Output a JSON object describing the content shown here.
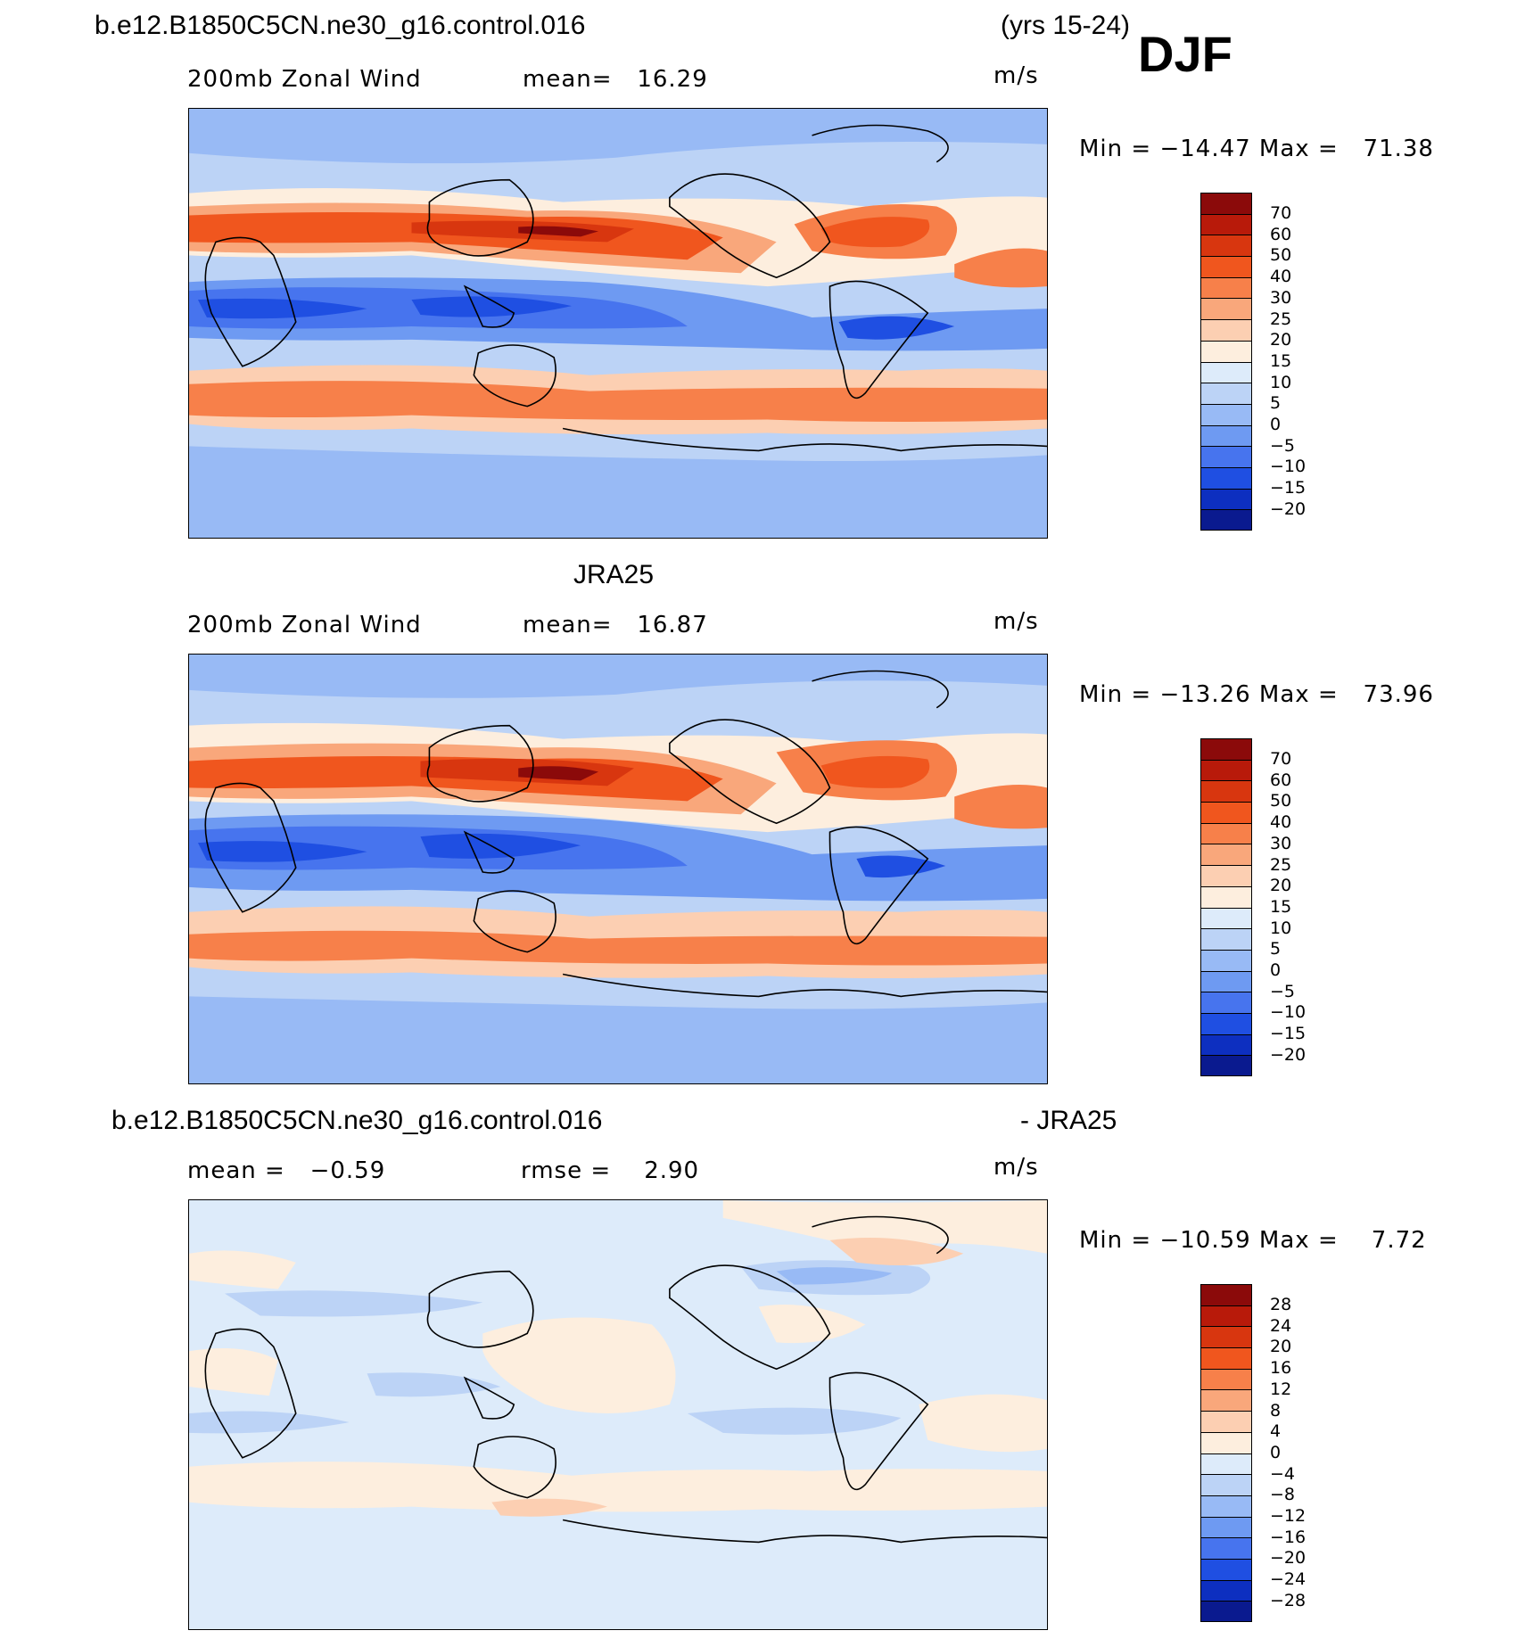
{
  "header": {
    "case_name": "b.e12.B1850C5CN.ne30_g16.control.016",
    "years": "(yrs 15-24)",
    "season": "DJF"
  },
  "panels": [
    {
      "id": "model",
      "heading": "",
      "left_label": "200mb Zonal Wind",
      "center_label": "mean=   16.29",
      "units": "m/s",
      "minmax": "Min = −14.47 Max =   71.38",
      "legend_levels": [
        "70",
        "60",
        "50",
        "40",
        "30",
        "25",
        "20",
        "15",
        "10",
        "5",
        "0",
        "−5",
        "−10",
        "−15",
        "−20"
      ]
    },
    {
      "id": "obs",
      "heading": "JRA25",
      "left_label": "200mb Zonal Wind",
      "center_label": "mean=   16.87",
      "units": "m/s",
      "minmax": "Min = −13.26 Max =   73.96",
      "legend_levels": [
        "70",
        "60",
        "50",
        "40",
        "30",
        "25",
        "20",
        "15",
        "10",
        "5",
        "0",
        "−5",
        "−10",
        "−15",
        "−20"
      ]
    },
    {
      "id": "diff",
      "heading_left": "b.e12.B1850C5CN.ne30_g16.control.016",
      "heading_right": "- JRA25",
      "left_label": "mean =   −0.59",
      "center_label": "rmse =    2.90",
      "units": "m/s",
      "minmax": "Min = −10.59 Max =    7.72",
      "legend_levels": [
        "28",
        "24",
        "20",
        "16",
        "12",
        "8",
        "4",
        "0",
        "−4",
        "−8",
        "−12",
        "−16",
        "−20",
        "−24",
        "−28"
      ]
    }
  ],
  "colors": {
    "full_scale": [
      "#8b0a0a",
      "#b81a0a",
      "#d8360f",
      "#f0561e",
      "#f7804a",
      "#f9a77b",
      "#fccfb2",
      "#fdeede",
      "#ddebfa",
      "#bcd3f6",
      "#98baf5",
      "#6e9af2",
      "#4774ee",
      "#1f4fe2",
      "#0d2fc0",
      "#0a1a8f"
    ],
    "diff_scale": [
      "#8b0a0a",
      "#b81a0a",
      "#d8360f",
      "#f0561e",
      "#f7804a",
      "#f9a77b",
      "#fccfb2",
      "#fdeede",
      "#ddebfa",
      "#bcd3f6",
      "#98baf5",
      "#6e9af2",
      "#4774ee",
      "#1f4fe2",
      "#0d2fc0",
      "#0a1a8f"
    ]
  }
}
